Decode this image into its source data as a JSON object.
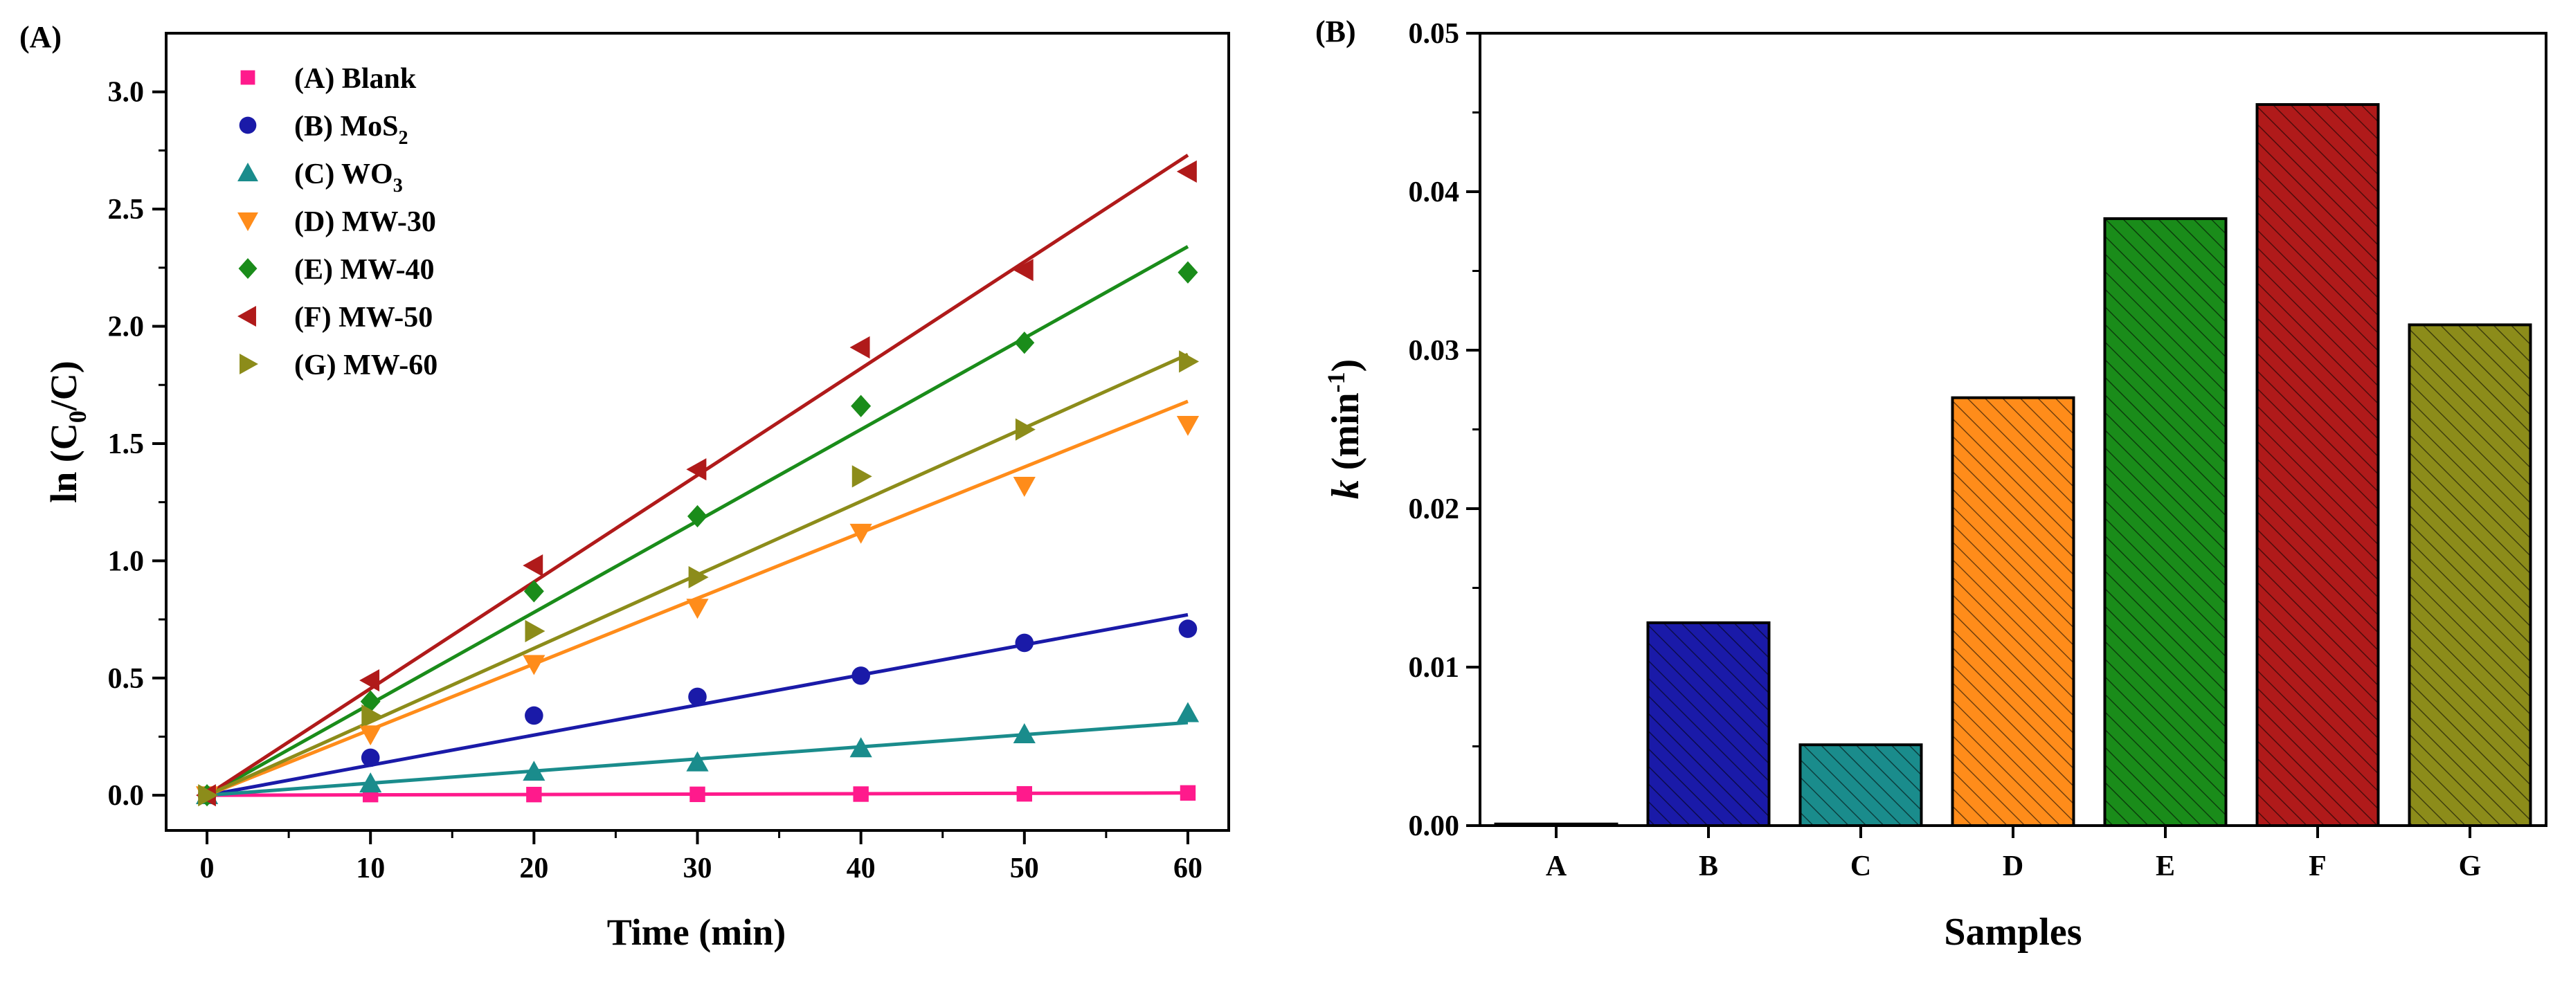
{
  "panel_a_label": "(A)",
  "panel_b_label": "(B)",
  "chart_data": [
    {
      "type": "scatter",
      "panel": "(A)",
      "xlabel": "Time (min)",
      "ylabel": {
        "prefix": "ln (C",
        "sub": "0",
        "suffix": "/C)"
      },
      "xlim": [
        -2.5,
        62.5
      ],
      "ylim": [
        -0.15,
        3.25
      ],
      "xticks": [
        0,
        10,
        20,
        30,
        40,
        50,
        60
      ],
      "xtick_labels": [
        "0",
        "10",
        "20",
        "30",
        "40",
        "50",
        "60"
      ],
      "yticks": [
        0,
        0.5,
        1,
        1.5,
        2,
        2.5,
        3
      ],
      "ytick_labels": [
        "0.0",
        "0.5",
        "1.0",
        "1.5",
        "2.0",
        "2.5",
        "3.0"
      ],
      "legend_position": "top-left",
      "x": [
        0,
        10,
        20,
        30,
        40,
        50,
        60
      ],
      "series": [
        {
          "name": "(A) Blank",
          "marker": "square",
          "color": "#ff1a8c",
          "values": [
            0,
            0.003,
            0.003,
            0.004,
            0.005,
            0.006,
            0.01
          ],
          "fit_end": 0.01
        },
        {
          "name": "(B) MoS",
          "sub": "2",
          "marker": "circle",
          "color": "#1a1aa8",
          "values": [
            0,
            0.16,
            0.34,
            0.42,
            0.51,
            0.65,
            0.71
          ],
          "fit_end": 0.77
        },
        {
          "name": "(C) WO",
          "sub": "3",
          "marker": "triangle-up",
          "color": "#1a8c8c",
          "values": [
            0,
            0.05,
            0.1,
            0.14,
            0.2,
            0.26,
            0.35
          ],
          "fit_end": 0.31
        },
        {
          "name": "(D) MW-30",
          "marker": "triangle-down",
          "color": "#ff8c1a",
          "values": [
            0,
            0.26,
            0.56,
            0.8,
            1.12,
            1.32,
            1.58
          ],
          "fit_end": 1.68
        },
        {
          "name": "(E) MW-40",
          "marker": "diamond",
          "color": "#1a8c1a",
          "values": [
            0,
            0.4,
            0.87,
            1.19,
            1.66,
            1.93,
            2.23
          ],
          "fit_end": 2.34
        },
        {
          "name": "(F) MW-50",
          "marker": "triangle-left",
          "color": "#b01a1a",
          "values": [
            0,
            0.49,
            0.98,
            1.39,
            1.91,
            2.24,
            2.66
          ],
          "fit_end": 2.73
        },
        {
          "name": "(G) MW-60",
          "marker": "triangle-right",
          "color": "#8c8c1a",
          "values": [
            0,
            0.34,
            0.7,
            0.93,
            1.36,
            1.56,
            1.85
          ],
          "fit_end": 1.88
        }
      ]
    },
    {
      "type": "bar",
      "panel": "(B)",
      "xlabel": "Samples",
      "ylabel": {
        "italic": "k",
        "unit": " (min",
        "sup": "-1",
        "close": ")"
      },
      "ylim": [
        0,
        0.05
      ],
      "yticks": [
        0,
        0.01,
        0.02,
        0.03,
        0.04,
        0.05
      ],
      "ytick_labels": [
        "0.00",
        "0.01",
        "0.02",
        "0.03",
        "0.04",
        "0.05"
      ],
      "categories": [
        "A",
        "B",
        "C",
        "D",
        "E",
        "F",
        "G"
      ],
      "values": [
        0.0001,
        0.0128,
        0.0051,
        0.027,
        0.0383,
        0.0455,
        0.0316
      ],
      "colors": [
        "#ff1a8c",
        "#1a1aa8",
        "#1a8c8c",
        "#ff8c1a",
        "#1a8c1a",
        "#b01a1a",
        "#8c8c1a"
      ],
      "hatch": "diagonal"
    }
  ]
}
